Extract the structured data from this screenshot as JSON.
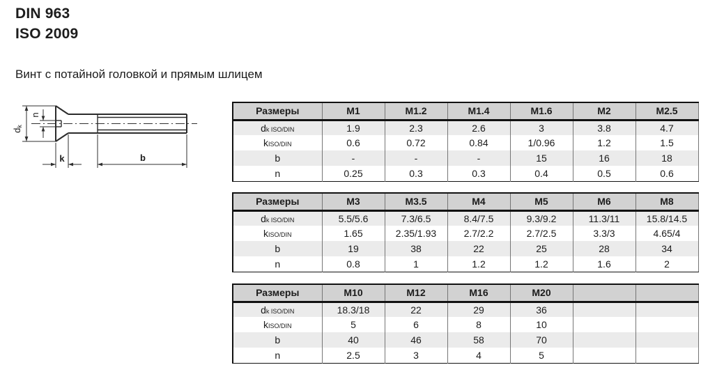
{
  "header": {
    "title_line1": "DIN 963",
    "title_line2": "ISO 2009",
    "subtitle": "Винт с потайной головкой и прямым шлицем"
  },
  "diagram": {
    "labels": {
      "dk_main": "d",
      "dk_sub": "k",
      "n": "n",
      "k": "k",
      "b": "b"
    }
  },
  "tables": [
    {
      "size_header": "Размеры",
      "columns": [
        "M1",
        "M1.2",
        "M1.4",
        "M1.6",
        "M2",
        "M2.5"
      ],
      "rows": [
        {
          "label": {
            "main": "d",
            "sub": "k ISO/DIN"
          },
          "shaded": true,
          "values": [
            "1.9",
            "2.3",
            "2.6",
            "3",
            "3.8",
            "4.7"
          ]
        },
        {
          "label": {
            "main": "k",
            "sub": "ISO/DIN"
          },
          "shaded": false,
          "values": [
            "0.6",
            "0.72",
            "0.84",
            "1/0.96",
            "1.2",
            "1.5"
          ]
        },
        {
          "label": {
            "main": "b",
            "sub": ""
          },
          "shaded": true,
          "values": [
            "-",
            "-",
            "-",
            "15",
            "16",
            "18"
          ]
        },
        {
          "label": {
            "main": "n",
            "sub": ""
          },
          "shaded": false,
          "values": [
            "0.25",
            "0.3",
            "0.3",
            "0.4",
            "0.5",
            "0.6"
          ]
        }
      ]
    },
    {
      "size_header": "Размеры",
      "columns": [
        "M3",
        "M3.5",
        "M4",
        "M5",
        "M6",
        "M8"
      ],
      "rows": [
        {
          "label": {
            "main": "d",
            "sub": "k ISO/DIN"
          },
          "shaded": true,
          "values": [
            "5.5/5.6",
            "7.3/6.5",
            "8.4/7.5",
            "9.3/9.2",
            "11.3/11",
            "15.8/14.5"
          ]
        },
        {
          "label": {
            "main": "k",
            "sub": "ISO/DIN"
          },
          "shaded": false,
          "values": [
            "1.65",
            "2.35/1.93",
            "2.7/2.2",
            "2.7/2.5",
            "3.3/3",
            "4.65/4"
          ]
        },
        {
          "label": {
            "main": "b",
            "sub": ""
          },
          "shaded": true,
          "values": [
            "19",
            "38",
            "22",
            "25",
            "28",
            "34"
          ]
        },
        {
          "label": {
            "main": "n",
            "sub": ""
          },
          "shaded": false,
          "values": [
            "0.8",
            "1",
            "1.2",
            "1.2",
            "1.6",
            "2"
          ]
        }
      ]
    },
    {
      "size_header": "Размеры",
      "columns": [
        "M10",
        "M12",
        "M16",
        "M20",
        "",
        ""
      ],
      "rows": [
        {
          "label": {
            "main": "d",
            "sub": "k ISO/DIN"
          },
          "shaded": true,
          "values": [
            "18.3/18",
            "22",
            "29",
            "36",
            "",
            ""
          ]
        },
        {
          "label": {
            "main": "k",
            "sub": "ISO/DIN"
          },
          "shaded": false,
          "values": [
            "5",
            "6",
            "8",
            "10",
            "",
            ""
          ]
        },
        {
          "label": {
            "main": "b",
            "sub": ""
          },
          "shaded": true,
          "values": [
            "40",
            "46",
            "58",
            "70",
            "",
            ""
          ]
        },
        {
          "label": {
            "main": "n",
            "sub": ""
          },
          "shaded": false,
          "values": [
            "2.5",
            "3",
            "4",
            "5",
            "",
            ""
          ]
        }
      ]
    }
  ],
  "colors": {
    "header_bg": "#d2d2d2",
    "row_shade": "#ebebeb",
    "text": "#1c1c1c",
    "border_dark": "#111111",
    "border_light": "#757575"
  }
}
